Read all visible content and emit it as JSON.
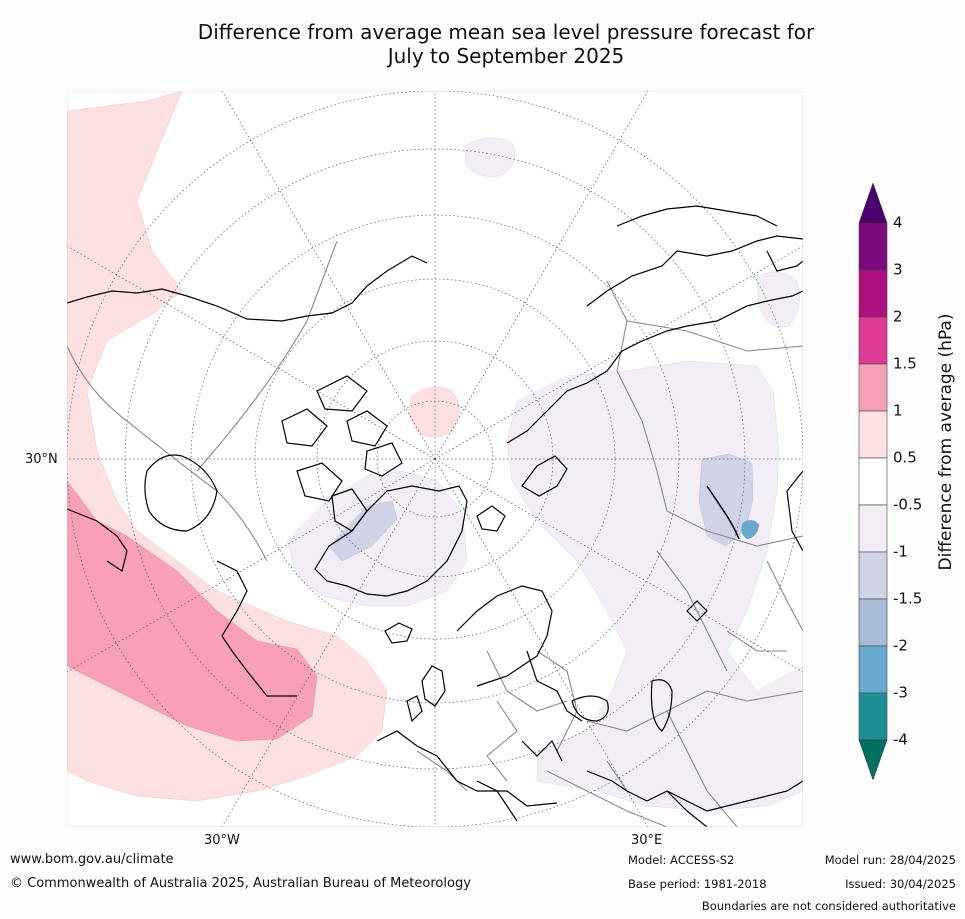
{
  "title_line1": "Difference from average mean sea level pressure forecast for",
  "title_line2": "July to September 2025",
  "map_labels": {
    "lat_30n": "30°N",
    "lon_30w": "30°W",
    "lon_30e": "30°E"
  },
  "colorbar": {
    "label": "Difference from average (hPa)",
    "ticks": [
      "4",
      "3",
      "2",
      "1.5",
      "1",
      "0.5",
      "-0.5",
      "-1",
      "-1.5",
      "-2",
      "-3",
      "-4"
    ],
    "colors_top_to_bottom": [
      "#7a0a7e",
      "#b0107f",
      "#e03a98",
      "#f8a0b8",
      "#fde0e0",
      "#ffffff",
      "#f3eef5",
      "#d0d3e6",
      "#a8bcd8",
      "#6aa9cf",
      "#1d9095"
    ],
    "over_color": "#4c0070",
    "under_color": "#007060"
  },
  "footer": {
    "website": "www.bom.gov.au/climate",
    "copyright": "© Commonwealth of Australia 2025, Australian Bureau of Meteorology",
    "model": "Model: ACCESS-S2",
    "base_period": "Base period: 1981-2018",
    "model_run": "Model run: 28/04/2025",
    "issued": "Issued: 30/04/2025",
    "disclaimer": "Boundaries are not considered authoritative"
  }
}
